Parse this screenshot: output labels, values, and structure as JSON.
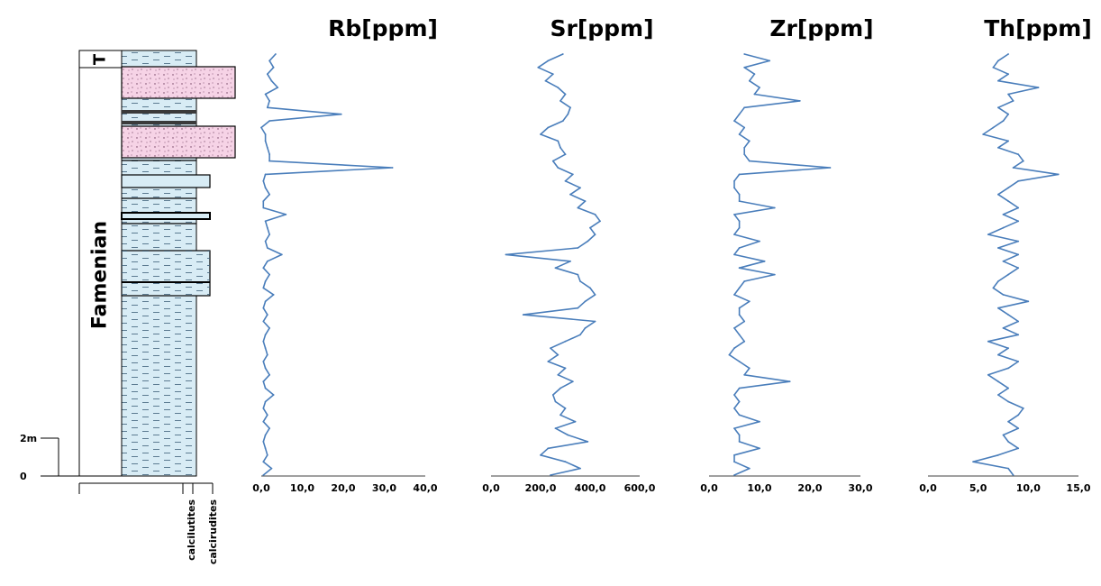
{
  "column": {
    "stage_label": "Famenian",
    "top_label": "T",
    "scale_label": "2m",
    "zero_label": "0",
    "lithology_labels": [
      "calcilutites",
      "calcirudites"
    ]
  },
  "chart_data": [
    {
      "type": "line",
      "orientation": "vertical-profile",
      "title": "Rb[ppm]",
      "xlim": [
        0,
        40
      ],
      "ticks": [
        "0,0",
        "10,0",
        "20,0",
        "30,0",
        "40,0"
      ],
      "depth_points": 64,
      "values": [
        3.5,
        2,
        3,
        1.5,
        2.5,
        4,
        1,
        2,
        1.5,
        19.5,
        2,
        0,
        1,
        1,
        1.5,
        2,
        2,
        32,
        1,
        0.5,
        1,
        2,
        0.5,
        0.5,
        6,
        1,
        1.5,
        2,
        1,
        1.5,
        5,
        1.5,
        0.5,
        2,
        1,
        0.5,
        3,
        1,
        0.5,
        1.5,
        0.5,
        2,
        1,
        0.5,
        1,
        1.5,
        0.5,
        1,
        2,
        0.5,
        1,
        3,
        1,
        0.5,
        1.5,
        0.5,
        2,
        1,
        0.5,
        1,
        1.5,
        0.5,
        2.5,
        0.5
      ]
    },
    {
      "type": "line",
      "orientation": "vertical-profile",
      "title": "Sr[ppm]",
      "xlim": [
        0,
        600
      ],
      "ticks": [
        "0,0",
        "200,0",
        "400,0",
        "600,0"
      ],
      "depth_points": 64,
      "values": [
        290,
        230,
        190,
        250,
        220,
        270,
        300,
        280,
        320,
        310,
        290,
        230,
        200,
        270,
        280,
        300,
        250,
        270,
        330,
        300,
        360,
        320,
        380,
        350,
        420,
        440,
        400,
        420,
        390,
        350,
        60,
        320,
        260,
        350,
        360,
        400,
        420,
        380,
        350,
        130,
        420,
        380,
        360,
        300,
        240,
        270,
        230,
        300,
        270,
        330,
        280,
        250,
        260,
        300,
        280,
        340,
        260,
        310,
        390,
        230,
        200,
        300,
        360,
        240
      ]
    },
    {
      "type": "line",
      "orientation": "vertical-profile",
      "title": "Zr[ppm]",
      "xlim": [
        0,
        30
      ],
      "ticks": [
        "0,0",
        "10,0",
        "20,0",
        "30,0"
      ],
      "depth_points": 64,
      "values": [
        7,
        12,
        7,
        9,
        8,
        10,
        9,
        18,
        7,
        6,
        5,
        7,
        6,
        8,
        7,
        7,
        8,
        24,
        6,
        5,
        5,
        6,
        6,
        13,
        5,
        6,
        6,
        5,
        10,
        6,
        5,
        11,
        6,
        13,
        7,
        6,
        5,
        8,
        6,
        6,
        7,
        5,
        6,
        7,
        5,
        4,
        6,
        8,
        7,
        16,
        6,
        5,
        6,
        5,
        6,
        10,
        5,
        6,
        6,
        10,
        5,
        5,
        8,
        5
      ]
    },
    {
      "type": "line",
      "orientation": "vertical-profile",
      "title": "Th[ppm]",
      "xlim": [
        0,
        15
      ],
      "ticks": [
        "0,0",
        "5,0",
        "10,0",
        "15,0"
      ],
      "depth_points": 64,
      "values": [
        8,
        7,
        6.5,
        8,
        7,
        11,
        8,
        8.5,
        7,
        8,
        7.5,
        6.5,
        5.5,
        8,
        7,
        9,
        9.5,
        8.5,
        13,
        9,
        8,
        7,
        8,
        9,
        7.5,
        9,
        7.5,
        6,
        9,
        7,
        9,
        7.5,
        9,
        8,
        7,
        6.5,
        7.5,
        10,
        7,
        8,
        9,
        7.5,
        9,
        6,
        8,
        7,
        9,
        8,
        6,
        7,
        8,
        7,
        8,
        9.5,
        9,
        8,
        9,
        7.5,
        8,
        9,
        7,
        4.5,
        8,
        8.5
      ]
    }
  ]
}
